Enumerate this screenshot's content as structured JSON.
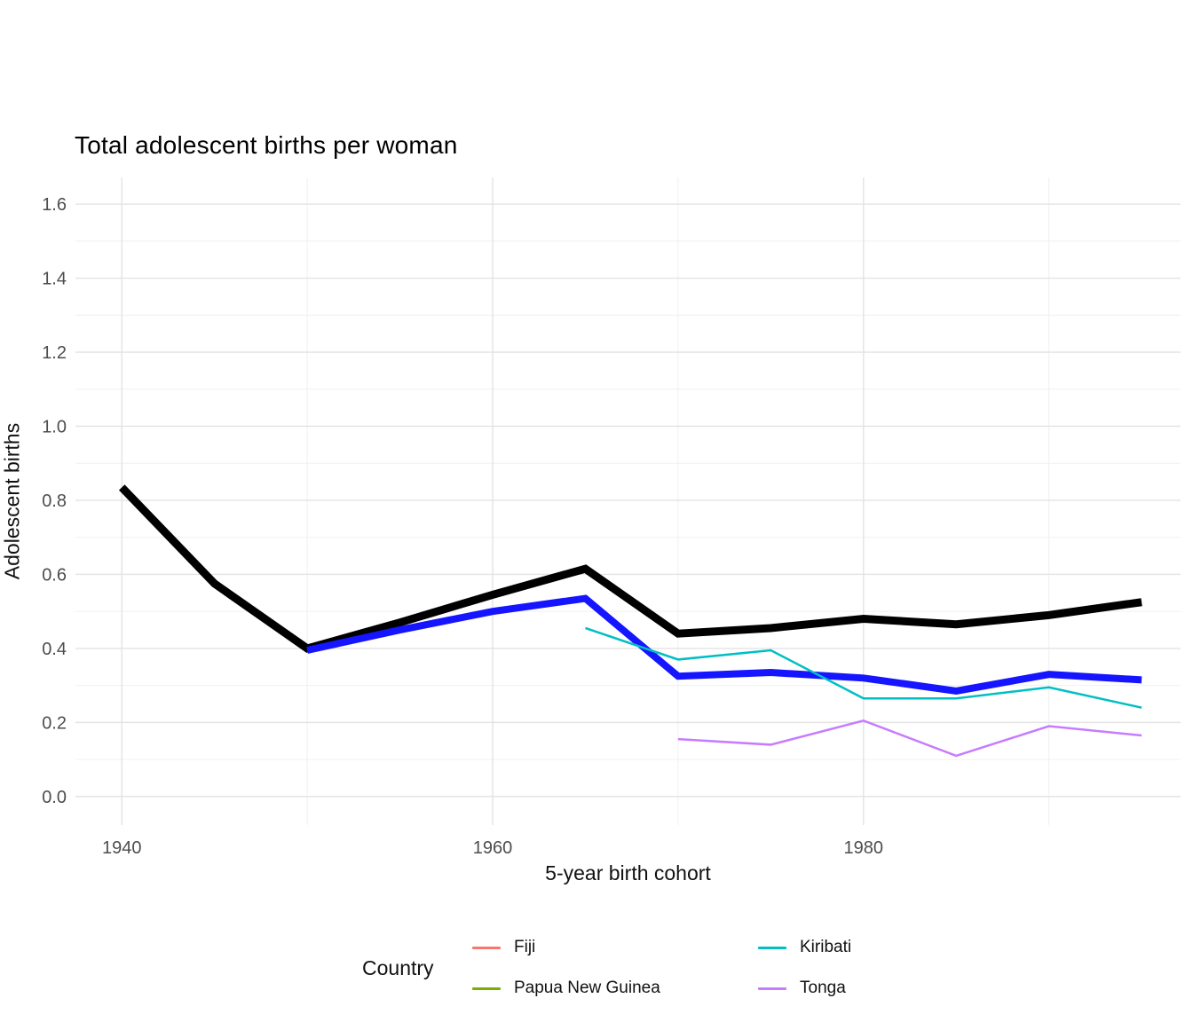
{
  "legend": {
    "title": "Country",
    "items": [
      {
        "label": "Fiji",
        "color": "#F8766D"
      },
      {
        "label": "Papua New Guinea",
        "color": "#7CAE00"
      },
      {
        "label": "Kiribati",
        "color": "#00BFC4"
      },
      {
        "label": "Tonga",
        "color": "#C77CFF"
      }
    ]
  },
  "chart_data": {
    "type": "line",
    "title": "Total adolescent births per woman",
    "xlabel": "5-year birth cohort",
    "ylabel": "Adolescent births",
    "grid": true,
    "legend_position": "bottom",
    "xlim": [
      1937.5,
      1997.1
    ],
    "ylim": [
      -0.077,
      1.672
    ],
    "x_ticks": {
      "values": [
        1940,
        1960,
        1980
      ],
      "labels": [
        "1940",
        "1960",
        "1980"
      ]
    },
    "x_minor": [
      1950,
      1970,
      1990
    ],
    "y_ticks": {
      "values": [
        0.0,
        0.2,
        0.4,
        0.6,
        0.8,
        1.0,
        1.2,
        1.4,
        1.6
      ],
      "labels": [
        "0.0",
        "0.2",
        "0.4",
        "0.6",
        "0.8",
        "1.0",
        "1.2",
        "1.4",
        "1.6"
      ]
    },
    "y_minor": [
      0.1,
      0.3,
      0.5,
      0.7,
      0.9,
      1.1,
      1.3,
      1.5
    ],
    "series": [
      {
        "id": "thick-black",
        "color": "#000000",
        "width": 9,
        "x": [
          1940,
          1945,
          1950,
          1955,
          1960,
          1965,
          1970,
          1975,
          1980,
          1985,
          1990,
          1995
        ],
        "values": [
          0.835,
          0.575,
          0.4,
          0.47,
          0.545,
          0.615,
          0.44,
          0.455,
          0.48,
          0.465,
          0.49,
          0.525
        ]
      },
      {
        "id": "thick-blue",
        "color": "#1515FF",
        "width": 8,
        "x": [
          1950,
          1955,
          1960,
          1965,
          1970,
          1975,
          1980,
          1985,
          1990,
          1995
        ],
        "values": [
          0.395,
          0.45,
          0.5,
          0.535,
          0.325,
          0.335,
          0.32,
          0.285,
          0.33,
          0.315
        ]
      },
      {
        "id": "kiribati",
        "color": "#00BFC4",
        "width": 2.5,
        "x": [
          1965,
          1970,
          1975,
          1980,
          1985,
          1990,
          1995
        ],
        "values": [
          0.455,
          0.37,
          0.395,
          0.265,
          0.265,
          0.295,
          0.24
        ]
      },
      {
        "id": "tonga",
        "color": "#C77CFF",
        "width": 2.5,
        "x": [
          1970,
          1975,
          1980,
          1985,
          1990,
          1995
        ],
        "values": [
          0.155,
          0.14,
          0.205,
          0.11,
          0.19,
          0.165
        ]
      }
    ]
  }
}
